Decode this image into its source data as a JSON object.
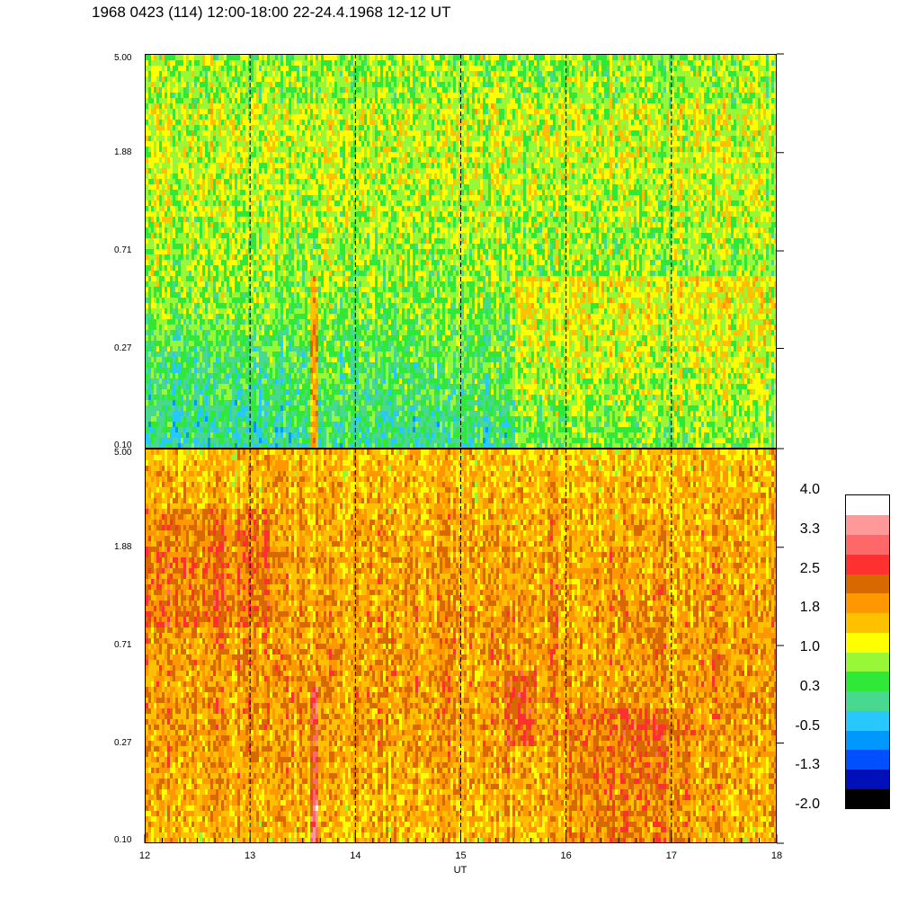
{
  "title": "1968 0423 (114) 12:00-18:00 22-24.4.1968  12-12 UT",
  "chart_data": [
    {
      "type": "heatmap",
      "panel": "top",
      "x": {
        "label": "UT",
        "range": [
          12,
          18
        ],
        "ticks": [
          "12",
          "13",
          "14",
          "15",
          "16",
          "17",
          "18"
        ]
      },
      "y": {
        "scale": "log",
        "range": [
          0.1,
          5.0
        ],
        "ticks": [
          "5.00",
          "1.88",
          "0.71",
          "0.27",
          "0.10"
        ]
      },
      "dominant_level": "green-yellow (0.3 to 1.5)",
      "vertical_dashed_lines_at": [
        13,
        14,
        15,
        16,
        17
      ],
      "features": [
        {
          "x": 13.6,
          "description": "orange vertical streak near bottom (about 1.5-2.0)"
        }
      ]
    },
    {
      "type": "heatmap",
      "panel": "bottom",
      "x": {
        "label": "UT",
        "range": [
          12,
          18
        ],
        "ticks": [
          "12",
          "13",
          "14",
          "15",
          "16",
          "17",
          "18"
        ]
      },
      "y": {
        "scale": "log",
        "range": [
          0.1,
          5.0
        ],
        "ticks": [
          "5.00",
          "1.88",
          "0.71",
          "0.27",
          "0.10"
        ]
      },
      "dominant_level": "orange (1.5 to 2.2)",
      "vertical_dashed_lines_at": [
        13,
        14,
        15,
        16,
        17
      ],
      "features": [
        {
          "x": 13.6,
          "description": "red/pink vertical streak near bottom (about 2.5-3.3)"
        },
        {
          "x_range": [
            16.0,
            17.2
          ],
          "description": "darker orange region at low y (about 2.0-2.3)"
        }
      ]
    }
  ],
  "colorbar": {
    "labels": [
      "4.0",
      "3.3",
      "2.5",
      "1.8",
      "1.0",
      "0.3",
      "-0.5",
      "-1.3",
      "-2.0"
    ],
    "range": [
      -2.0,
      4.0
    ],
    "colors": [
      "#000000",
      "#0010b8",
      "#0050ff",
      "#0098ff",
      "#28c8ff",
      "#48d890",
      "#30e838",
      "#98f838",
      "#ffff00",
      "#ffc000",
      "#ff9800",
      "#d86800",
      "#ff3030",
      "#ff6868",
      "#ff9898",
      "#ffffff"
    ]
  },
  "xlabel": "UT"
}
